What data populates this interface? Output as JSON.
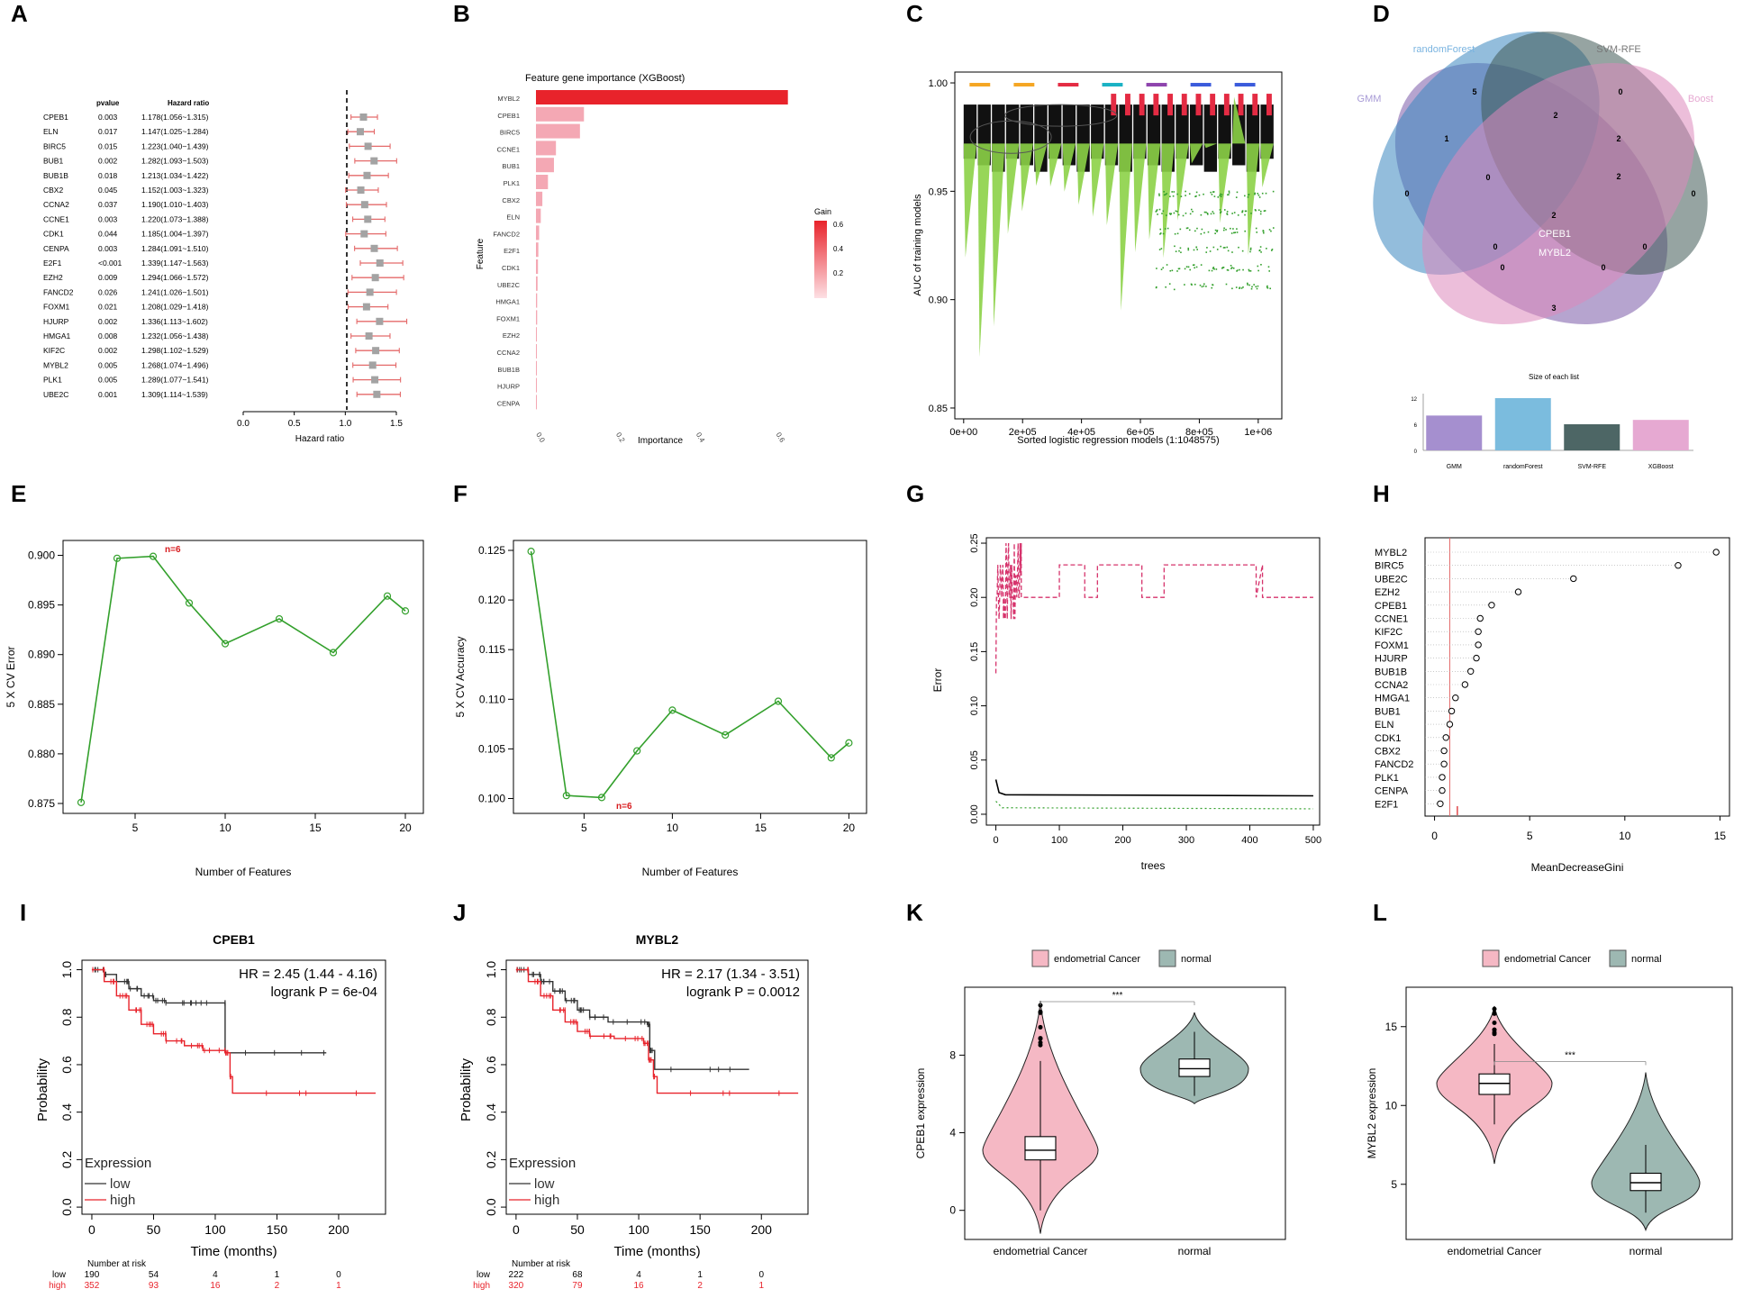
{
  "panel_labels": [
    "A",
    "B",
    "C",
    "D",
    "E",
    "F",
    "G",
    "H",
    "I",
    "J",
    "K",
    "L"
  ],
  "colors": {
    "red": "#e8232b",
    "pink": "#f4a8b4",
    "green": "#33a02c",
    "lightgreen": "#8cd147",
    "km_low": "#333333",
    "km_high": "#e8232b",
    "violin_cancer": "#f5b8c4",
    "violin_normal": "#9db8b2",
    "venn_rf": "#3b86c0",
    "venn_gmm": "#7a5aa8",
    "venn_svm": "#3f5a55",
    "venn_xgb": "#dd88bb",
    "bar_gmm": "#a58fcf",
    "bar_rf": "#7bbcde",
    "bar_svm": "#4d6665",
    "bar_xgb": "#e6a9d2"
  },
  "chart_data": [
    {
      "id": "A",
      "type": "forest",
      "col_pvalue": "pvalue",
      "col_hr": "Hazard ratio",
      "xlabel": "Hazard ratio",
      "xticks": [
        "0.0",
        "0.5",
        "1.0",
        "1.5"
      ],
      "xlim": [
        0,
        1.5
      ],
      "ref_line": 1.0,
      "rows": [
        {
          "gene": "CPEB1",
          "p": "0.003",
          "text": "1.178(1.056~1.315)",
          "hr": 1.178,
          "lo": 1.056,
          "hi": 1.315
        },
        {
          "gene": "ELN",
          "p": "0.017",
          "text": "1.147(1.025~1.284)",
          "hr": 1.147,
          "lo": 1.025,
          "hi": 1.284
        },
        {
          "gene": "BIRC5",
          "p": "0.015",
          "text": "1.223(1.040~1.439)",
          "hr": 1.223,
          "lo": 1.04,
          "hi": 1.439
        },
        {
          "gene": "BUB1",
          "p": "0.002",
          "text": "1.282(1.093~1.503)",
          "hr": 1.282,
          "lo": 1.093,
          "hi": 1.503
        },
        {
          "gene": "BUB1B",
          "p": "0.018",
          "text": "1.213(1.034~1.422)",
          "hr": 1.213,
          "lo": 1.034,
          "hi": 1.422
        },
        {
          "gene": "CBX2",
          "p": "0.045",
          "text": "1.152(1.003~1.323)",
          "hr": 1.152,
          "lo": 1.003,
          "hi": 1.323
        },
        {
          "gene": "CCNA2",
          "p": "0.037",
          "text": "1.190(1.010~1.403)",
          "hr": 1.19,
          "lo": 1.01,
          "hi": 1.403
        },
        {
          "gene": "CCNE1",
          "p": "0.003",
          "text": "1.220(1.073~1.388)",
          "hr": 1.22,
          "lo": 1.073,
          "hi": 1.388
        },
        {
          "gene": "CDK1",
          "p": "0.044",
          "text": "1.185(1.004~1.397)",
          "hr": 1.185,
          "lo": 1.004,
          "hi": 1.397
        },
        {
          "gene": "CENPA",
          "p": "0.003",
          "text": "1.284(1.091~1.510)",
          "hr": 1.284,
          "lo": 1.091,
          "hi": 1.51
        },
        {
          "gene": "E2F1",
          "p": "<0.001",
          "text": "1.339(1.147~1.563)",
          "hr": 1.339,
          "lo": 1.147,
          "hi": 1.563
        },
        {
          "gene": "EZH2",
          "p": "0.009",
          "text": "1.294(1.066~1.572)",
          "hr": 1.294,
          "lo": 1.066,
          "hi": 1.572
        },
        {
          "gene": "FANCD2",
          "p": "0.026",
          "text": "1.241(1.026~1.501)",
          "hr": 1.241,
          "lo": 1.026,
          "hi": 1.501
        },
        {
          "gene": "FOXM1",
          "p": "0.021",
          "text": "1.208(1.029~1.418)",
          "hr": 1.208,
          "lo": 1.029,
          "hi": 1.418
        },
        {
          "gene": "HJURP",
          "p": "0.002",
          "text": "1.336(1.113~1.602)",
          "hr": 1.336,
          "lo": 1.113,
          "hi": 1.602
        },
        {
          "gene": "HMGA1",
          "p": "0.008",
          "text": "1.232(1.056~1.438)",
          "hr": 1.232,
          "lo": 1.056,
          "hi": 1.438
        },
        {
          "gene": "KIF2C",
          "p": "0.002",
          "text": "1.298(1.102~1.529)",
          "hr": 1.298,
          "lo": 1.102,
          "hi": 1.529
        },
        {
          "gene": "MYBL2",
          "p": "0.005",
          "text": "1.268(1.074~1.496)",
          "hr": 1.268,
          "lo": 1.074,
          "hi": 1.496
        },
        {
          "gene": "PLK1",
          "p": "0.005",
          "text": "1.289(1.077~1.541)",
          "hr": 1.289,
          "lo": 1.077,
          "hi": 1.541
        },
        {
          "gene": "UBE2C",
          "p": "0.001",
          "text": "1.309(1.114~1.539)",
          "hr": 1.309,
          "lo": 1.114,
          "hi": 1.539
        }
      ]
    },
    {
      "id": "B",
      "type": "bar",
      "title": "Feature gene importance (XGBoost)",
      "xlabel": "Importance",
      "ylabel": "Feature",
      "xticks": [
        "0.0",
        "0.2",
        "0.4",
        "0.6"
      ],
      "xlim": [
        0,
        0.66
      ],
      "legend_title": "Gain",
      "legend_ticks": [
        "0.6",
        "0.4",
        "0.2"
      ],
      "categories": [
        "MYBL2",
        "CPEB1",
        "BIRC5",
        "CCNE1",
        "BUB1",
        "PLK1",
        "CBX2",
        "ELN",
        "FANCD2",
        "E2F1",
        "CDK1",
        "UBE2C",
        "HMGA1",
        "FOXM1",
        "EZH2",
        "CCNA2",
        "BUB1B",
        "HJURP",
        "CENPA"
      ],
      "values": [
        0.63,
        0.12,
        0.11,
        0.05,
        0.045,
        0.03,
        0.016,
        0.012,
        0.008,
        0.006,
        0.005,
        0.004,
        0.003,
        0.003,
        0.002,
        0.002,
        0.002,
        0.001,
        0.001
      ]
    },
    {
      "id": "C",
      "type": "scatter",
      "xlabel": "Sorted logistic regression models (1:1048575)",
      "ylabel": "AUC of training models",
      "xticks": [
        "0e+00",
        "2e+05",
        "4e+05",
        "6e+05",
        "8e+05",
        "1e+06"
      ],
      "xtick_values": [
        0,
        200000,
        400000,
        600000,
        800000,
        1000000
      ],
      "yticks": [
        "0.85",
        "0.90",
        "0.95",
        "1.00"
      ],
      "ytick_values": [
        0.85,
        0.9,
        0.95,
        1.0
      ],
      "xlim": [
        -30000,
        1080000
      ],
      "ylim": [
        0.845,
        1.005
      ],
      "note": "~1,048,575 models; AUC of training models sorted, grouped color bands (black / green / red)"
    },
    {
      "id": "D",
      "type": "venn",
      "sets": [
        "randomForest",
        "SVM-RFE",
        "GMM",
        "XGBoost"
      ],
      "set_labels_shown": [
        "randomForest",
        "SVM-RFE",
        "GMM",
        "Boost"
      ],
      "region_counts": [
        "5",
        "2",
        "0",
        "1",
        "0",
        "2",
        "0",
        "2",
        "0",
        "2",
        "0",
        "0",
        "0",
        "0",
        "3"
      ],
      "center_genes": [
        "CPEB1",
        "MYBL2"
      ],
      "bar_title": "Size of each list",
      "bar_categories": [
        "GMM",
        "randomForest",
        "SVM-RFE",
        "XGBoost"
      ],
      "bar_values": [
        8,
        12,
        6,
        7
      ],
      "bar_yticks": [
        "0",
        "6",
        "12"
      ]
    },
    {
      "id": "E",
      "type": "line",
      "xlabel": "Number of Features",
      "ylabel": "5 X CV Error",
      "x": [
        2,
        4,
        6,
        8,
        10,
        13,
        16,
        19,
        20
      ],
      "y": [
        0.8751,
        0.8997,
        0.8999,
        0.8952,
        0.8911,
        0.8936,
        0.8902,
        0.8959,
        0.8944
      ],
      "xticks": [
        "5",
        "10",
        "15",
        "20"
      ],
      "yticks": [
        "0.875",
        "0.880",
        "0.885",
        "0.890",
        "0.895",
        "0.900"
      ],
      "xlim": [
        1,
        21
      ],
      "ylim": [
        0.874,
        0.9015
      ],
      "annotation": "n=6"
    },
    {
      "id": "F",
      "type": "line",
      "xlabel": "Number of Features",
      "ylabel": "5 X CV Accuracy",
      "x": [
        2,
        4,
        6,
        8,
        10,
        13,
        16,
        19,
        20
      ],
      "y": [
        0.1249,
        0.1003,
        0.1001,
        0.1048,
        0.1089,
        0.1064,
        0.1098,
        0.1041,
        0.1056
      ],
      "xticks": [
        "5",
        "10",
        "15",
        "20"
      ],
      "yticks": [
        "0.100",
        "0.105",
        "0.110",
        "0.115",
        "0.120",
        "0.125"
      ],
      "xlim": [
        1,
        21
      ],
      "ylim": [
        0.0985,
        0.126
      ],
      "annotation": "n=6"
    },
    {
      "id": "G",
      "type": "line",
      "xlabel": "trees",
      "ylabel": "Error",
      "xticks": [
        "0",
        "100",
        "200",
        "300",
        "400",
        "500"
      ],
      "yticks": [
        "0.00",
        "0.05",
        "0.10",
        "0.15",
        "0.20",
        "0.25"
      ],
      "xlim": [
        -15,
        510
      ],
      "ylim": [
        -0.01,
        0.255
      ],
      "series": [
        {
          "name": "class error (dashed red)",
          "level": 0.2,
          "alt_levels": [
            0.23,
            0.17
          ]
        },
        {
          "name": "OOB (black)",
          "level": 0.017,
          "start": 0.032
        },
        {
          "name": "class error (dotted green)",
          "level": 0.005
        }
      ]
    },
    {
      "id": "H",
      "type": "dotchart",
      "xlabel": "MeanDecreaseGini",
      "xticks": [
        "0",
        "5",
        "10",
        "15"
      ],
      "xlim": [
        -0.5,
        15.5
      ],
      "categories": [
        "MYBL2",
        "BIRC5",
        "UBE2C",
        "EZH2",
        "CPEB1",
        "CCNE1",
        "KIF2C",
        "FOXM1",
        "HJURP",
        "BUB1B",
        "CCNA2",
        "HMGA1",
        "BUB1",
        "ELN",
        "CDK1",
        "CBX2",
        "FANCD2",
        "PLK1",
        "CENPA",
        "E2F1"
      ],
      "values": [
        14.8,
        12.8,
        7.3,
        4.4,
        3.0,
        2.4,
        2.3,
        2.3,
        2.2,
        1.9,
        1.6,
        1.1,
        0.9,
        0.8,
        0.6,
        0.5,
        0.5,
        0.4,
        0.4,
        0.3
      ],
      "vline": 0.8
    },
    {
      "id": "I",
      "type": "km",
      "title": "CPEB1",
      "xlabel": "Time (months)",
      "ylabel": "Probability",
      "hr_text": "HR = 2.45 (1.44 - 4.16)",
      "p_text": "logrank P = 6e-04",
      "legend_title": "Expression",
      "legend": [
        "low",
        "high"
      ],
      "xticks": [
        "0",
        "50",
        "100",
        "150",
        "200"
      ],
      "yticks": [
        "0.0",
        "0.2",
        "0.4",
        "0.6",
        "0.8",
        "1.0"
      ],
      "xlim": [
        -8,
        238
      ],
      "ylim": [
        -0.03,
        1.04
      ],
      "risk_label": "Number at risk",
      "risk_low": [
        "190",
        "54",
        "4",
        "1",
        "0"
      ],
      "risk_high": [
        "352",
        "93",
        "16",
        "2",
        "1"
      ],
      "low": [
        [
          0,
          1
        ],
        [
          10,
          0.98
        ],
        [
          20,
          0.95
        ],
        [
          30,
          0.92
        ],
        [
          40,
          0.89
        ],
        [
          50,
          0.87
        ],
        [
          60,
          0.86
        ],
        [
          80,
          0.86
        ],
        [
          108,
          0.86
        ],
        [
          108,
          0.65
        ],
        [
          190,
          0.65
        ]
      ],
      "high": [
        [
          0,
          1
        ],
        [
          10,
          0.95
        ],
        [
          20,
          0.89
        ],
        [
          30,
          0.83
        ],
        [
          40,
          0.77
        ],
        [
          50,
          0.73
        ],
        [
          60,
          0.7
        ],
        [
          75,
          0.68
        ],
        [
          90,
          0.66
        ],
        [
          108,
          0.65
        ],
        [
          112,
          0.55
        ],
        [
          114,
          0.48
        ],
        [
          230,
          0.48
        ]
      ]
    },
    {
      "id": "J",
      "type": "km",
      "title": "MYBL2",
      "xlabel": "Time (months)",
      "ylabel": "Probability",
      "hr_text": "HR = 2.17 (1.34 - 3.51)",
      "p_text": "logrank P = 0.0012",
      "legend_title": "Expression",
      "legend": [
        "low",
        "high"
      ],
      "xticks": [
        "0",
        "50",
        "100",
        "150",
        "200"
      ],
      "yticks": [
        "0.0",
        "0.2",
        "0.4",
        "0.6",
        "0.8",
        "1.0"
      ],
      "xlim": [
        -8,
        238
      ],
      "ylim": [
        -0.03,
        1.04
      ],
      "risk_label": "Number at risk",
      "risk_low": [
        "222",
        "68",
        "4",
        "1",
        "0"
      ],
      "risk_high": [
        "320",
        "79",
        "16",
        "2",
        "1"
      ],
      "low": [
        [
          0,
          1
        ],
        [
          10,
          0.98
        ],
        [
          20,
          0.95
        ],
        [
          30,
          0.91
        ],
        [
          40,
          0.87
        ],
        [
          50,
          0.83
        ],
        [
          60,
          0.8
        ],
        [
          75,
          0.78
        ],
        [
          107,
          0.77
        ],
        [
          109,
          0.66
        ],
        [
          113,
          0.58
        ],
        [
          190,
          0.58
        ]
      ],
      "high": [
        [
          0,
          1
        ],
        [
          10,
          0.95
        ],
        [
          20,
          0.89
        ],
        [
          30,
          0.83
        ],
        [
          40,
          0.78
        ],
        [
          50,
          0.74
        ],
        [
          60,
          0.72
        ],
        [
          80,
          0.71
        ],
        [
          104,
          0.69
        ],
        [
          108,
          0.62
        ],
        [
          112,
          0.55
        ],
        [
          115,
          0.48
        ],
        [
          230,
          0.48
        ]
      ]
    },
    {
      "id": "K",
      "type": "violin",
      "ylabel": "CPEB1 expression",
      "yticks": [
        "0",
        "4",
        "8"
      ],
      "ytick_values": [
        0,
        4,
        8
      ],
      "ylim": [
        -1.5,
        11.5
      ],
      "legend": [
        "endometrial Cancer",
        "normal"
      ],
      "categories": [
        "endometrial Cancer",
        "normal"
      ],
      "signif": "***",
      "groups": [
        {
          "name": "endometrial Cancer",
          "median": 3.1,
          "q1": 2.6,
          "q3": 3.8,
          "wlo": 0,
          "whi": 7.7,
          "min": -1.2,
          "max": 10.8
        },
        {
          "name": "normal",
          "median": 7.3,
          "q1": 6.9,
          "q3": 7.8,
          "wlo": 5.9,
          "whi": 9.2,
          "min": 5.5,
          "max": 10.2
        }
      ]
    },
    {
      "id": "L",
      "type": "violin",
      "ylabel": "MYBL2 expression",
      "yticks": [
        "5",
        "10",
        "15"
      ],
      "ytick_values": [
        5,
        10,
        15
      ],
      "ylim": [
        1.5,
        17.5
      ],
      "legend": [
        "endometrial Cancer",
        "normal"
      ],
      "categories": [
        "endometrial Cancer",
        "normal"
      ],
      "signif": "***",
      "groups": [
        {
          "name": "endometrial Cancer",
          "median": 11.4,
          "q1": 10.7,
          "q3": 12.0,
          "wlo": 8.8,
          "whi": 13.9,
          "min": 6.3,
          "max": 16.3
        },
        {
          "name": "normal",
          "median": 5.1,
          "q1": 4.6,
          "q3": 5.7,
          "wlo": 3.2,
          "whi": 7.5,
          "min": 2.1,
          "max": 12.1
        }
      ]
    }
  ]
}
